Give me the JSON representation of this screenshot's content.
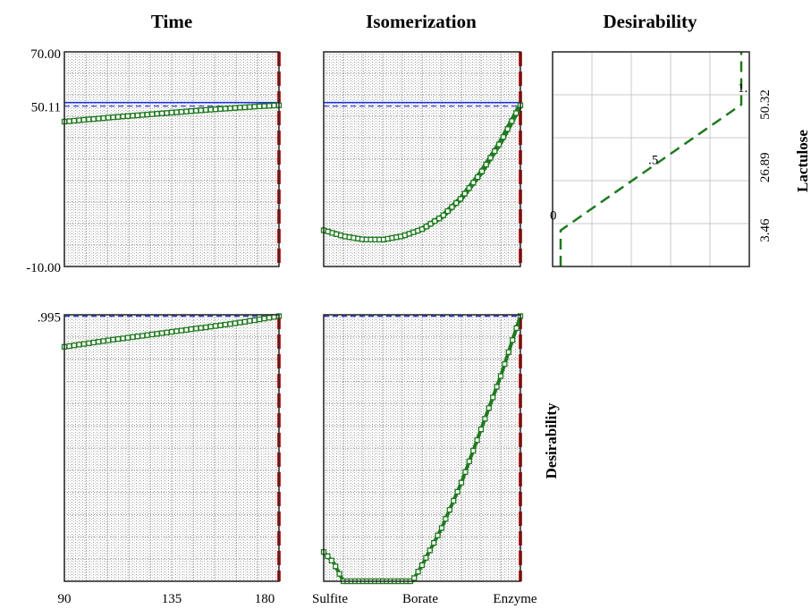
{
  "chart_data": {
    "type": "line",
    "column_titles": [
      "Time",
      "Isomerization",
      "Desirability"
    ],
    "row_labels": [
      "Lactulose",
      "Desirability"
    ],
    "lactulose_axis": {
      "ylim": [
        -10.0,
        70.0
      ],
      "tick_labels": [
        "70.00",
        "50.11",
        "-10.00"
      ],
      "ticks": [
        70.0,
        50.11,
        -10.0
      ],
      "target": 50.11
    },
    "desirability_axis": {
      "ylim": [
        0.0,
        1.0
      ],
      "tick_labels": [
        ".995"
      ],
      "ticks": [
        0.995
      ],
      "target": 0.995
    },
    "time_axis": {
      "xlim": [
        90,
        180
      ],
      "tick_labels": [
        "90",
        "135",
        "180"
      ],
      "ticks": [
        90,
        135,
        180
      ]
    },
    "isomerization_axis": {
      "tick_labels": [
        "Sulfite",
        "Borate",
        "Enzyme"
      ],
      "ticks": [
        0,
        1,
        2
      ]
    },
    "panels": {
      "time_lactulose": {
        "x": [
          90,
          100,
          110,
          120,
          130,
          140,
          150,
          160,
          170,
          180
        ],
        "y": [
          44.0,
          44.8,
          45.6,
          46.3,
          47.0,
          47.7,
          48.4,
          49.0,
          49.6,
          50.11
        ]
      },
      "iso_lactulose": {
        "x": [
          0,
          0.2,
          0.4,
          0.6,
          0.8,
          1.0,
          1.2,
          1.4,
          1.6,
          1.8,
          2.0
        ],
        "y": [
          3.5,
          1.3,
          0.1,
          0.0,
          1.3,
          3.9,
          8.5,
          15.5,
          25.0,
          36.5,
          50.11
        ]
      },
      "time_desirability": {
        "x": [
          90,
          100,
          110,
          120,
          130,
          140,
          150,
          160,
          170,
          180
        ],
        "y": [
          0.88,
          0.893,
          0.906,
          0.918,
          0.93,
          0.942,
          0.954,
          0.966,
          0.98,
          0.995
        ]
      },
      "iso_desirability": {
        "x": [
          0,
          0.1,
          0.2,
          0.4,
          0.6,
          0.8,
          0.9,
          1.0,
          1.2,
          1.4,
          1.6,
          1.8,
          2.0
        ],
        "y": [
          0.11,
          0.07,
          0.0,
          0.0,
          0.0,
          0.0,
          0.0,
          0.06,
          0.2,
          0.37,
          0.57,
          0.77,
          0.995
        ]
      },
      "desirability_function": {
        "tick_labels": [
          "50.32",
          "26.89",
          "3.46"
        ],
        "ticks": [
          50.32,
          26.89,
          3.46
        ],
        "level_labels": [
          "0",
          ".5",
          "1."
        ],
        "x": [
          0,
          0,
          1,
          1
        ],
        "y": [
          -10.0,
          3.46,
          50.32,
          70.0
        ]
      }
    },
    "grid": true
  }
}
